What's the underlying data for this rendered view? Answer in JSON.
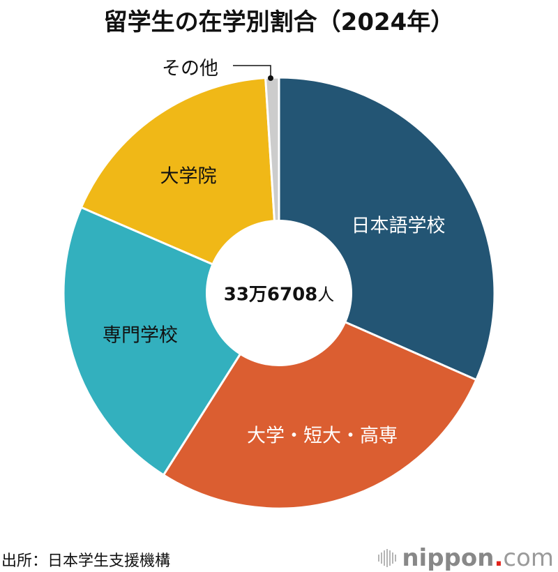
{
  "title": "留学生の在学別割合（2024年）",
  "center_total": {
    "value": "33万6708",
    "unit": "人"
  },
  "source": "出所：日本学生支援機構",
  "brand": {
    "name": "nippon",
    "dot": ".",
    "tld": "com",
    "logo_icon": "sound-bars-icon"
  },
  "other_label": "その他",
  "chart_data": {
    "type": "pie",
    "variant": "donut",
    "title": "留学生の在学別割合（2024年）",
    "total_label": "33万6708人",
    "start_angle_deg": 0,
    "direction": "clockwise",
    "categories": [
      "日本語学校",
      "大学・短大・高専",
      "専門学校",
      "大学院",
      "その他"
    ],
    "values": [
      31.6,
      27.4,
      22.5,
      17.5,
      1.0
    ],
    "unit": "%",
    "colors": [
      "#235574",
      "#db5e31",
      "#33b0be",
      "#f0b817",
      "#cccccc"
    ],
    "label_colors": [
      "#ffffff",
      "#ffffff",
      "#111111",
      "#111111",
      "#111111"
    ],
    "legend": "none (labels inside slices; その他 via leader line)",
    "source": "日本学生支援機構"
  }
}
